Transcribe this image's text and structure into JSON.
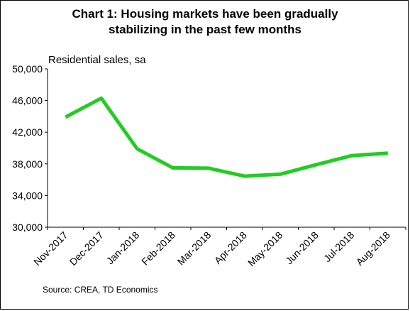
{
  "chart_data": {
    "type": "line",
    "title": "Chart 1: Housing markets have been gradually stabilizing in the past few months",
    "title_lines": [
      "Chart 1: Housing markets have been gradually",
      "stabilizing in the past few months"
    ],
    "ylabel": "Residential sales, sa",
    "xlabel": "",
    "categories": [
      "Nov-2017",
      "Dec-2017",
      "Jan-2018",
      "Feb-2018",
      "Mar-2018",
      "Apr-2018",
      "May-2018",
      "Jun-2018",
      "Jul-2018",
      "Aug-2018"
    ],
    "values": [
      43900,
      46300,
      39900,
      37500,
      37450,
      36450,
      36700,
      37900,
      39050,
      39350
    ],
    "ylim": [
      30000,
      50000
    ],
    "yticks": [
      30000,
      34000,
      38000,
      42000,
      46000,
      50000
    ],
    "ytick_labels": [
      "30,000",
      "34,000",
      "38,000",
      "42,000",
      "46,000",
      "50,000"
    ],
    "grid": false,
    "line_color": "#22cc22",
    "source": "Source: CREA, TD Economics"
  }
}
